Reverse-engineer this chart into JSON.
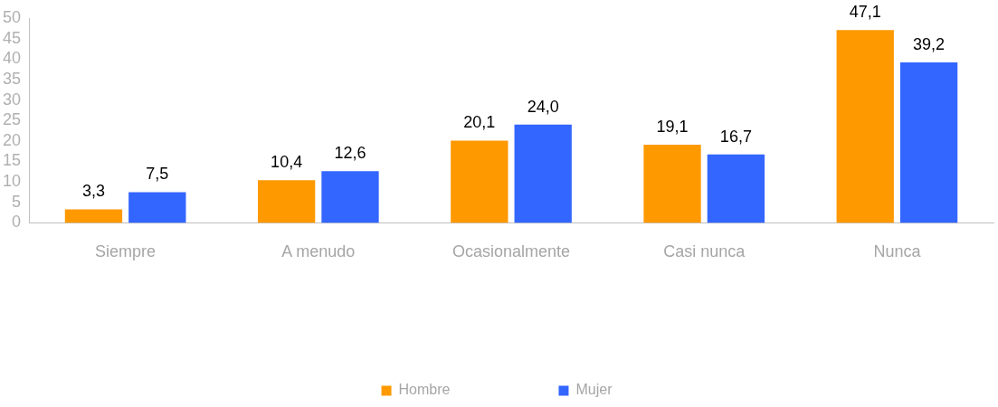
{
  "chart_data": {
    "type": "bar",
    "categories": [
      "Siempre",
      "A menudo",
      "Ocasionalmente",
      "Casi nunca",
      "Nunca"
    ],
    "series": [
      {
        "name": "Hombre",
        "color": "#ff9900",
        "values": [
          3.3,
          10.4,
          20.1,
          19.1,
          47.1
        ],
        "value_labels": [
          "3,3",
          "10,4",
          "20,1",
          "19,1",
          "47,1"
        ]
      },
      {
        "name": "Mujer",
        "color": "#3366ff",
        "values": [
          7.5,
          12.6,
          24.0,
          16.7,
          39.2
        ],
        "value_labels": [
          "7,5",
          "12,6",
          "24,0",
          "16,7",
          "39,2"
        ]
      }
    ],
    "ylim": [
      0,
      50
    ],
    "yticks": [
      0,
      5,
      10,
      15,
      20,
      25,
      30,
      35,
      40,
      45,
      50
    ],
    "grid": false,
    "legend": "bottom"
  }
}
